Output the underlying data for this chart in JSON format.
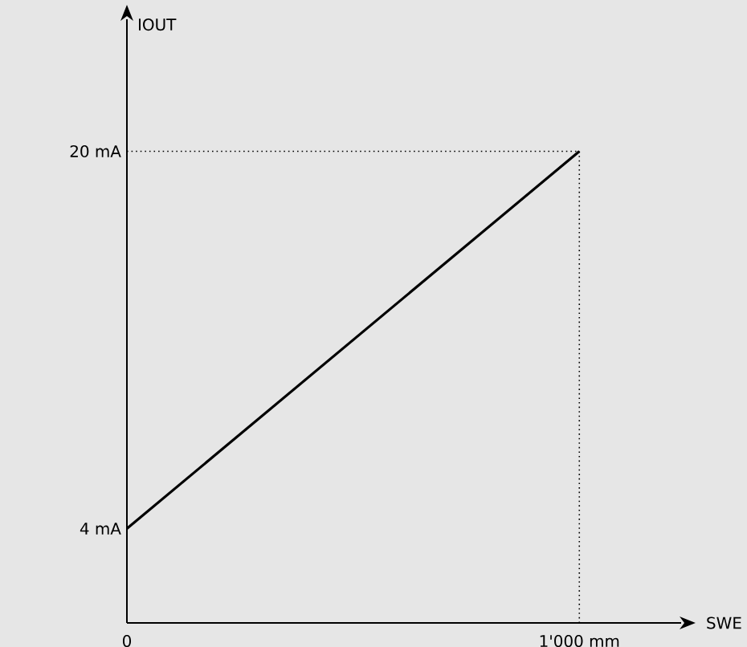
{
  "chart_data": {
    "type": "line",
    "xlabel": "SWE",
    "ylabel": "IOUT",
    "x": [
      0,
      1000
    ],
    "series": [
      {
        "color": "#000000",
        "values": [
          4,
          20
        ]
      }
    ],
    "xlim": [
      0,
      1225
    ],
    "ylim": [
      0,
      25.6
    ],
    "xticks": [
      0,
      {
        "value": 1000,
        "label": "1'000 mm"
      }
    ],
    "yticks": [
      {
        "value": 4,
        "label": "4 mA"
      },
      {
        "value": 20,
        "label": "20 mA"
      }
    ],
    "ref_lines": [
      {
        "axis": "x",
        "value": 1000,
        "color": "#000000",
        "line_style": "dotted"
      },
      {
        "axis": "y",
        "value": 20,
        "color": "#000000",
        "line_style": "dotted"
      }
    ],
    "grid": false,
    "marker": "none",
    "line_style": "solid"
  }
}
